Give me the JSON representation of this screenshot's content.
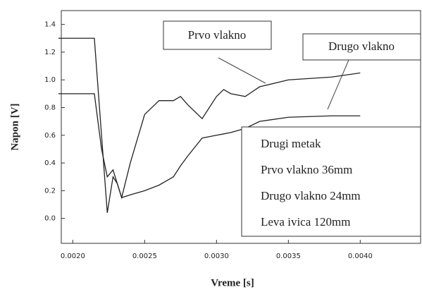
{
  "chart_data": {
    "type": "line",
    "xlabel": "Vreme [s]",
    "ylabel": "Napon [V]",
    "x": [
      0.0019,
      0.00215,
      0.0022,
      0.00224,
      0.00228,
      0.00231,
      0.00234,
      0.0024,
      0.0025,
      0.0026,
      0.0027,
      0.00275,
      0.0028,
      0.0029,
      0.003,
      0.00305,
      0.0031,
      0.0032,
      0.0033,
      0.0035,
      0.0038,
      0.004
    ],
    "series": [
      {
        "name": "Prvo vlakno",
        "color": "#222222",
        "values": [
          1.3,
          1.3,
          0.6,
          0.04,
          0.3,
          0.25,
          0.15,
          0.4,
          0.75,
          0.85,
          0.85,
          0.88,
          0.82,
          0.72,
          0.88,
          0.93,
          0.9,
          0.88,
          0.95,
          1.0,
          1.02,
          1.05
        ]
      },
      {
        "name": "Drugo vlakno",
        "color": "#222222",
        "values": [
          0.9,
          0.9,
          0.5,
          0.3,
          0.35,
          0.25,
          0.15,
          0.17,
          0.2,
          0.24,
          0.3,
          0.38,
          0.45,
          0.58,
          0.6,
          0.61,
          0.62,
          0.65,
          0.7,
          0.73,
          0.74,
          0.74
        ]
      }
    ],
    "xlim": [
      0.00192,
      0.00442
    ],
    "xticks": [
      {
        "value": 0.002,
        "label": "0.0020"
      },
      {
        "value": 0.0025,
        "label": "0.0025"
      },
      {
        "value": 0.003,
        "label": "0.0030"
      },
      {
        "value": 0.0035,
        "label": "0.0035"
      },
      {
        "value": 0.004,
        "label": "0.0040"
      }
    ],
    "ylim": [
      -0.18,
      1.5
    ],
    "yticks": [
      {
        "value": 0,
        "label": "0.0"
      },
      0.2,
      0.4,
      0.6,
      0.8,
      {
        "value": 1,
        "label": "1.0"
      },
      1.2,
      1.4
    ],
    "info_box": [
      "Drugi metak",
      "Prvo vlakno 36mm",
      "Drugo vlakno 24mm",
      "Leva ivica 120mm"
    ]
  }
}
